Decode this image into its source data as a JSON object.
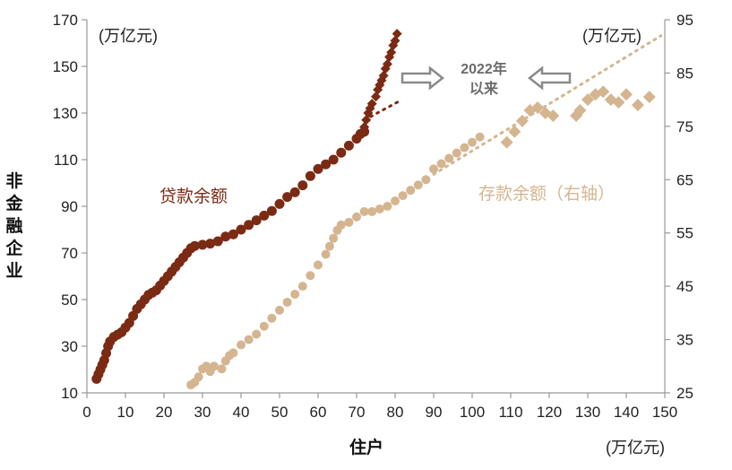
{
  "chart_data": {
    "type": "scatter",
    "title": "",
    "xlabel": "住户",
    "ylabel": "非金融企业",
    "x_unit": "(万亿元)",
    "y_unit_left": "(万亿元)",
    "y_unit_right": "(万亿元)",
    "xlim": [
      0,
      150
    ],
    "ylim_left": [
      10,
      170
    ],
    "ylim_right": [
      25,
      95
    ],
    "x_ticks": [
      0,
      10,
      20,
      30,
      40,
      50,
      60,
      70,
      80,
      90,
      100,
      110,
      120,
      130,
      140,
      150
    ],
    "y_ticks_left": [
      10,
      30,
      50,
      70,
      90,
      110,
      130,
      150,
      170
    ],
    "y_ticks_right": [
      25,
      35,
      45,
      55,
      65,
      75,
      85,
      95
    ],
    "grid": false,
    "annotation": {
      "lines": [
        "2022年",
        "以来"
      ],
      "arrow_left_color": "#8a8a8a",
      "arrow_right_color": "#8a8a8a"
    },
    "series": [
      {
        "name": "贷款余额",
        "axis": "left",
        "color": "#7b2a14",
        "marker": "circle",
        "points": [
          [
            2.5,
            16
          ],
          [
            3,
            18
          ],
          [
            3.5,
            20
          ],
          [
            4,
            22
          ],
          [
            4.5,
            24
          ],
          [
            5,
            27
          ],
          [
            5.5,
            30
          ],
          [
            6,
            32
          ],
          [
            7,
            34
          ],
          [
            8,
            35
          ],
          [
            9,
            36
          ],
          [
            10,
            38
          ],
          [
            11,
            40
          ],
          [
            12,
            43
          ],
          [
            13,
            46
          ],
          [
            14,
            48
          ],
          [
            15,
            50
          ],
          [
            16,
            52
          ],
          [
            17,
            53
          ],
          [
            18,
            54
          ],
          [
            19,
            56
          ],
          [
            20,
            58
          ],
          [
            21,
            60
          ],
          [
            22,
            62
          ],
          [
            23,
            64
          ],
          [
            24,
            66
          ],
          [
            25,
            68
          ],
          [
            26,
            70
          ],
          [
            27,
            72
          ],
          [
            28,
            73
          ],
          [
            30,
            73.5
          ],
          [
            32,
            74
          ],
          [
            34,
            75
          ],
          [
            36,
            77
          ],
          [
            38,
            78
          ],
          [
            40,
            80
          ],
          [
            42,
            82
          ],
          [
            44,
            84
          ],
          [
            46,
            86
          ],
          [
            48,
            88
          ],
          [
            50,
            91
          ],
          [
            52,
            94
          ],
          [
            54,
            96
          ],
          [
            56,
            99
          ],
          [
            58,
            103
          ],
          [
            60,
            106
          ],
          [
            62,
            108
          ],
          [
            64,
            110
          ],
          [
            66,
            113
          ],
          [
            68,
            116
          ],
          [
            70,
            119
          ],
          [
            71,
            121
          ],
          [
            72,
            122
          ]
        ]
      },
      {
        "name": "",
        "axis": "left",
        "color": "#7b2a14",
        "marker": "diamond",
        "points": [
          [
            72,
            124
          ],
          [
            72.5,
            127
          ],
          [
            73,
            130
          ],
          [
            73.5,
            132
          ],
          [
            74,
            134
          ],
          [
            75,
            137
          ],
          [
            75.5,
            140
          ],
          [
            76,
            142
          ],
          [
            76.5,
            144
          ],
          [
            77,
            146
          ],
          [
            77.5,
            149
          ],
          [
            78,
            151
          ],
          [
            78.5,
            154
          ],
          [
            79,
            156
          ],
          [
            79.5,
            159
          ],
          [
            80,
            161
          ],
          [
            80.5,
            164
          ]
        ]
      },
      {
        "name": "",
        "axis": "left",
        "color": "#7b2a14",
        "marker": "dotted-line",
        "points": [
          [
            72,
            127
          ],
          [
            81,
            135
          ]
        ]
      },
      {
        "name": "存款余额（右轴）",
        "axis": "right",
        "color": "#d4b590",
        "marker": "circle",
        "points": [
          [
            27,
            26.5
          ],
          [
            28,
            27
          ],
          [
            29,
            28
          ],
          [
            30,
            29.5
          ],
          [
            31,
            30
          ],
          [
            32,
            29
          ],
          [
            33,
            30
          ],
          [
            35,
            29.5
          ],
          [
            36,
            31
          ],
          [
            37,
            32
          ],
          [
            38,
            32.5
          ],
          [
            40,
            34
          ],
          [
            42,
            35
          ],
          [
            44,
            36
          ],
          [
            46,
            37.5
          ],
          [
            48,
            39
          ],
          [
            50,
            40.5
          ],
          [
            52,
            42
          ],
          [
            54,
            43.5
          ],
          [
            56,
            45
          ],
          [
            58,
            47
          ],
          [
            60,
            49
          ],
          [
            62,
            51
          ],
          [
            63,
            52.5
          ],
          [
            64,
            54
          ],
          [
            65,
            55.5
          ],
          [
            66,
            56.5
          ],
          [
            68,
            57
          ],
          [
            70,
            58
          ],
          [
            72,
            59
          ],
          [
            74,
            59
          ],
          [
            76,
            59.5
          ],
          [
            78,
            60
          ],
          [
            80,
            61
          ],
          [
            82,
            62
          ],
          [
            84,
            63
          ],
          [
            86,
            64
          ],
          [
            88,
            65
          ],
          [
            90,
            67
          ],
          [
            92,
            68
          ],
          [
            94,
            69
          ],
          [
            96,
            70
          ],
          [
            98,
            71
          ],
          [
            100,
            72
          ],
          [
            102,
            73
          ]
        ]
      },
      {
        "name": "",
        "axis": "right",
        "color": "#d4b590",
        "marker": "diamond",
        "points": [
          [
            109,
            72
          ],
          [
            111,
            74
          ],
          [
            113,
            76
          ],
          [
            115,
            78
          ],
          [
            117,
            78.5
          ],
          [
            119,
            77.5
          ],
          [
            121,
            77
          ],
          [
            127,
            77
          ],
          [
            128,
            78
          ],
          [
            130,
            80
          ],
          [
            132,
            81
          ],
          [
            134,
            81.5
          ],
          [
            136,
            80
          ],
          [
            138,
            79.5
          ],
          [
            140,
            81
          ],
          [
            143,
            79
          ],
          [
            146,
            80.5
          ]
        ]
      },
      {
        "name": "",
        "axis": "right",
        "color": "#d4b590",
        "marker": "dotted-line",
        "points": [
          [
            90,
            66
          ],
          [
            149,
            92
          ]
        ]
      }
    ]
  }
}
